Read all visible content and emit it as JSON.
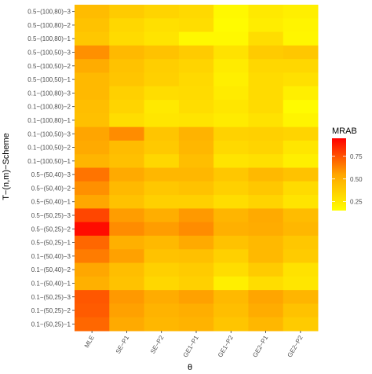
{
  "chart_data": {
    "type": "heatmap",
    "xlabel": "θ",
    "ylabel": "T−(n,m)−Scheme",
    "x_categories": [
      "MLE",
      "SE−P1",
      "SE−P2",
      "GE1−P1",
      "GE1−P2",
      "GE2−P1",
      "GE2−P2"
    ],
    "y_categories": [
      "0.5−(100,80)−3",
      "0.5−(100,80)−2",
      "0.5−(100,80)−1",
      "0.5−(100,50)−3",
      "0.5−(100,50)−2",
      "0.5−(100,50)−1",
      "0.1−(100,80)−3",
      "0.1−(100,80)−2",
      "0.1−(100,80)−1",
      "0.1−(100,50)−3",
      "0.1−(100,50)−2",
      "0.1−(100,50)−1",
      "0.5−(50,40)−3",
      "0.5−(50,40)−2",
      "0.5−(50,40)−1",
      "0.5−(50,25)−3",
      "0.5−(50,25)−2",
      "0.5−(50,25)−1",
      "0.1−(50,40)−3",
      "0.1−(50,40)−2",
      "0.1−(50,40)−1",
      "0.1−(50,25)−3",
      "0.1−(50,25)−2",
      "0.1−(50,25)−1"
    ],
    "values": [
      [
        0.45,
        0.38,
        0.34,
        0.32,
        0.18,
        0.25,
        0.22
      ],
      [
        0.42,
        0.33,
        0.29,
        0.3,
        0.17,
        0.23,
        0.2
      ],
      [
        0.4,
        0.31,
        0.27,
        0.18,
        0.18,
        0.3,
        0.19
      ],
      [
        0.6,
        0.46,
        0.42,
        0.38,
        0.28,
        0.38,
        0.4
      ],
      [
        0.52,
        0.42,
        0.37,
        0.34,
        0.24,
        0.33,
        0.33
      ],
      [
        0.46,
        0.41,
        0.36,
        0.32,
        0.22,
        0.31,
        0.29
      ],
      [
        0.46,
        0.36,
        0.3,
        0.31,
        0.24,
        0.31,
        0.22
      ],
      [
        0.44,
        0.34,
        0.25,
        0.3,
        0.26,
        0.31,
        0.17
      ],
      [
        0.43,
        0.3,
        0.26,
        0.27,
        0.24,
        0.28,
        0.2
      ],
      [
        0.55,
        0.61,
        0.41,
        0.49,
        0.35,
        0.36,
        0.34
      ],
      [
        0.53,
        0.45,
        0.39,
        0.47,
        0.32,
        0.34,
        0.26
      ],
      [
        0.48,
        0.43,
        0.33,
        0.44,
        0.27,
        0.29,
        0.22
      ],
      [
        0.67,
        0.53,
        0.47,
        0.47,
        0.4,
        0.46,
        0.42
      ],
      [
        0.6,
        0.46,
        0.4,
        0.42,
        0.36,
        0.4,
        0.31
      ],
      [
        0.54,
        0.42,
        0.36,
        0.36,
        0.3,
        0.34,
        0.27
      ],
      [
        0.78,
        0.57,
        0.51,
        0.58,
        0.48,
        0.53,
        0.45
      ],
      [
        0.92,
        0.61,
        0.57,
        0.61,
        0.5,
        0.52,
        0.47
      ],
      [
        0.7,
        0.5,
        0.46,
        0.53,
        0.42,
        0.46,
        0.4
      ],
      [
        0.65,
        0.56,
        0.42,
        0.43,
        0.36,
        0.46,
        0.38
      ],
      [
        0.54,
        0.44,
        0.36,
        0.38,
        0.3,
        0.38,
        0.28
      ],
      [
        0.5,
        0.42,
        0.33,
        0.36,
        0.22,
        0.3,
        0.26
      ],
      [
        0.74,
        0.58,
        0.52,
        0.56,
        0.46,
        0.55,
        0.48
      ],
      [
        0.73,
        0.56,
        0.49,
        0.51,
        0.44,
        0.52,
        0.42
      ],
      [
        0.7,
        0.53,
        0.47,
        0.49,
        0.41,
        0.47,
        0.38
      ]
    ],
    "legend": {
      "title": "MRAB",
      "ticks": [
        0.25,
        0.5,
        0.75
      ],
      "tick_labels": [
        "0.25",
        "0.50",
        "0.75"
      ],
      "range": [
        0.15,
        0.95
      ],
      "colors": {
        "low": "#ffff00",
        "high": "#ff0000"
      },
      "placement": "right"
    },
    "grid": false
  }
}
